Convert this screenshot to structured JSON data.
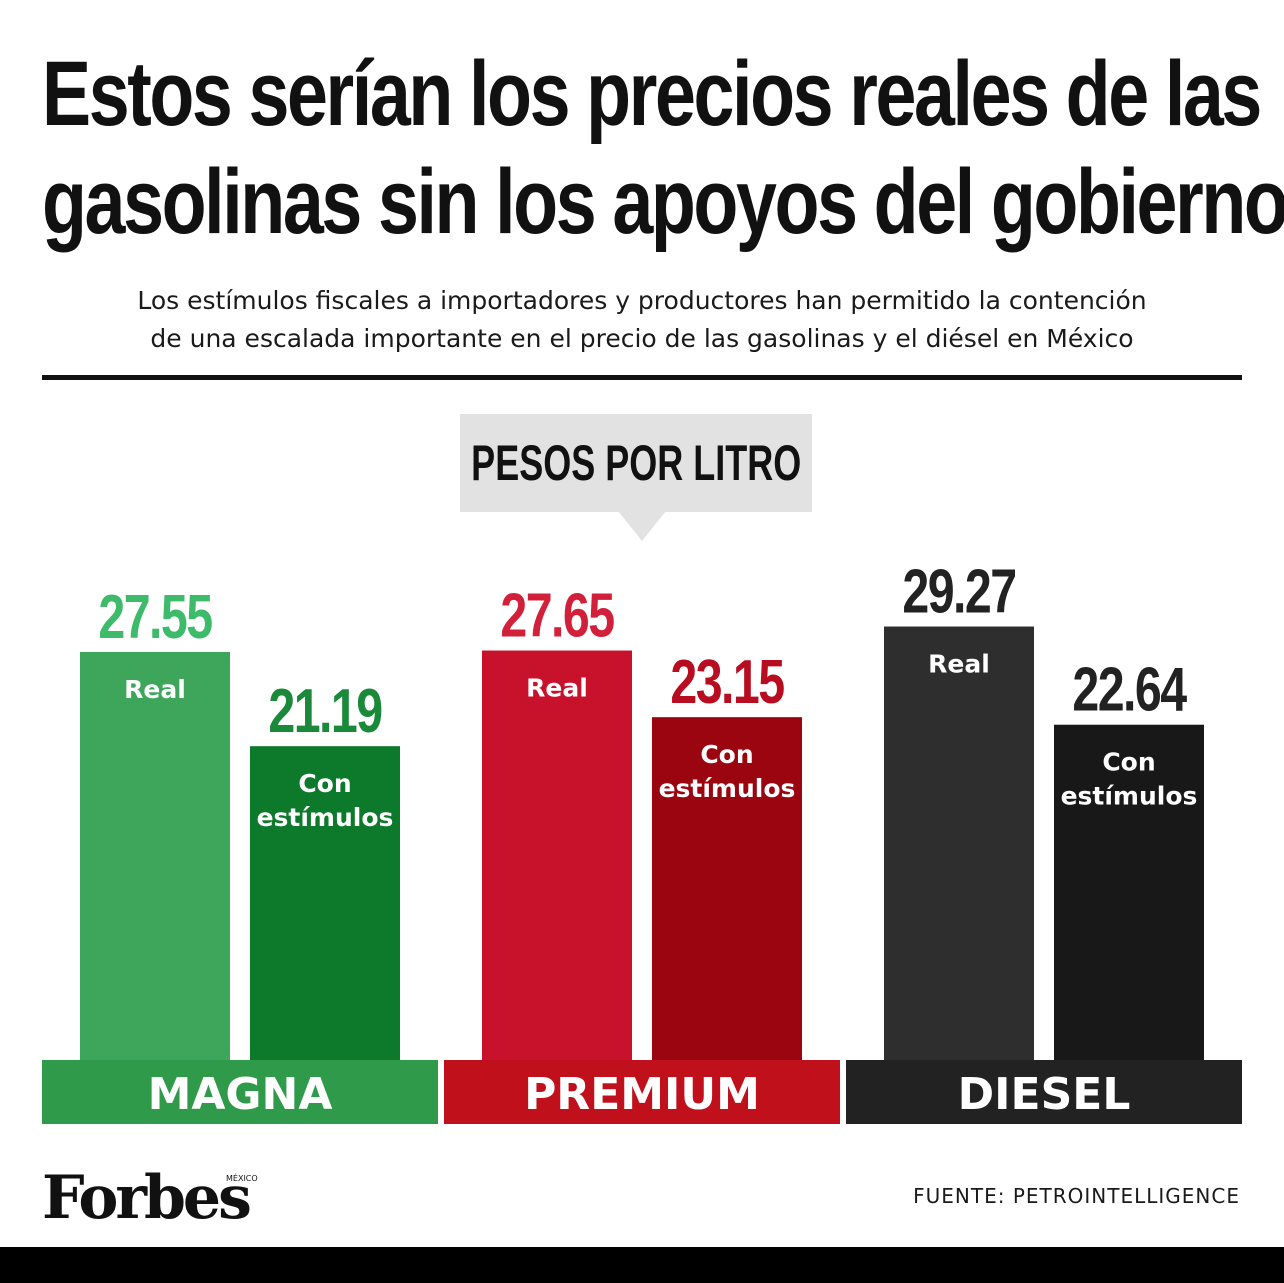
{
  "header": {
    "title_line1": "Estos serían los precios reales de las",
    "title_line2": "gasolinas sin los apoyos del gobierno",
    "subtitle_line1": "Los estímulos fiscales a importadores y productores han permitido la contención",
    "subtitle_line2": "de una escalada importante en el precio de las gasolinas y el diésel en México"
  },
  "chart_data": {
    "type": "bar",
    "unit_label": "PESOS POR LITRO",
    "categories": [
      "MAGNA",
      "PREMIUM",
      "DIESEL"
    ],
    "series": [
      {
        "name": "Real",
        "values": [
          27.55,
          27.65,
          29.27
        ],
        "labels": [
          "27.55",
          "27.65",
          "29.27"
        ]
      },
      {
        "name": "Con estímulos",
        "values": [
          21.19,
          23.15,
          22.64
        ],
        "labels": [
          "21.19",
          "23.15",
          "22.64"
        ]
      }
    ],
    "bar_labels": {
      "real": [
        "Real"
      ],
      "stimulus": [
        "Con",
        "estímulos"
      ]
    },
    "colors": {
      "MAGNA": {
        "real": "#3da65b",
        "stimulus": "#0d7a2b",
        "band": "#2e9a4a",
        "value_real": "#3dba6a",
        "value_stimulus": "#1a8a3a"
      },
      "PREMIUM": {
        "real": "#c8122c",
        "stimulus": "#9a0510",
        "band": "#c0101c",
        "value_real": "#d2203a",
        "value_stimulus": "#b80d20"
      },
      "DIESEL": {
        "real": "#2e2e2e",
        "stimulus": "#181818",
        "band": "#222222",
        "value_real": "#222222",
        "value_stimulus": "#222222"
      }
    }
  },
  "footer": {
    "logo_text": "Forbes",
    "logo_edition": "MÉXICO",
    "source": "FUENTE: PETROINTELLIGENCE"
  }
}
